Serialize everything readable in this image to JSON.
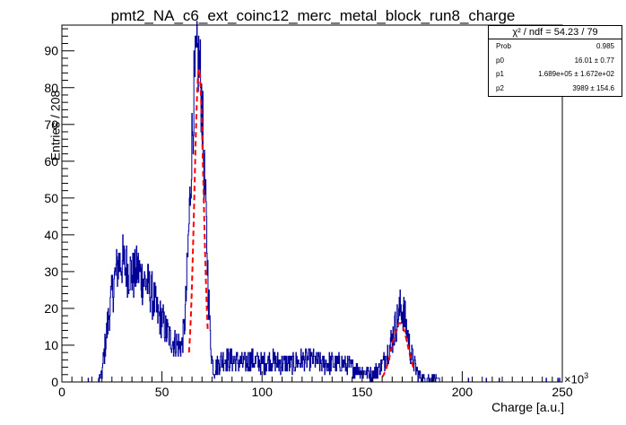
{
  "chart_data": {
    "type": "histogram",
    "title": "pmt2_NA_c6_ext_coinc12_merc_metal_block_run8_charge",
    "xlabel": "Charge [a.u.]",
    "ylabel": "Entries / 208",
    "x_multiplier": "×10",
    "x_multiplier_exp": "3",
    "xlim": [
      0,
      250
    ],
    "ylim": [
      0,
      97
    ],
    "x_ticks": [
      "0",
      "50",
      "100",
      "150",
      "200",
      "250"
    ],
    "y_ticks": [
      "0",
      "10",
      "20",
      "30",
      "40",
      "50",
      "60",
      "70",
      "80",
      "90"
    ],
    "series": [
      {
        "style": "histogram",
        "color": "#000099",
        "x": [
          0,
          5,
          10,
          15,
          18,
          20,
          22,
          24,
          26,
          28,
          30,
          32,
          34,
          36,
          38,
          40,
          42,
          44,
          46,
          48,
          50,
          52,
          54,
          56,
          58,
          60,
          61,
          62,
          63,
          64,
          65,
          66,
          67,
          68,
          69,
          70,
          71,
          72,
          73,
          74,
          75,
          76,
          78,
          80,
          85,
          90,
          95,
          100,
          105,
          110,
          115,
          120,
          125,
          130,
          135,
          140,
          145,
          150,
          155,
          157,
          159,
          160,
          162,
          164,
          166,
          168,
          169,
          170,
          171,
          172,
          174,
          176,
          178,
          180,
          185,
          190,
          200,
          210,
          220,
          230,
          240,
          250
        ],
        "y": [
          0,
          0,
          0,
          0,
          0,
          2,
          12,
          20,
          27,
          32,
          33,
          31,
          30,
          29,
          31,
          28,
          27,
          25,
          22,
          18,
          17,
          14,
          12,
          11,
          10,
          10,
          14,
          22,
          35,
          50,
          65,
          78,
          85,
          88,
          85,
          75,
          58,
          45,
          28,
          14,
          6,
          3,
          5,
          6,
          6,
          5,
          6,
          5,
          6,
          5,
          5,
          6,
          6,
          5,
          5,
          5,
          4,
          3,
          2,
          3,
          4,
          5,
          7,
          10,
          14,
          18,
          20,
          20,
          18,
          15,
          9,
          5,
          2,
          1,
          1,
          0,
          0,
          0,
          0,
          0,
          0,
          0
        ]
      }
    ],
    "fits": [
      {
        "color": "#ff0000",
        "center": 68.5,
        "sigma": 2.3,
        "amplitude": 85,
        "range": [
          63.5,
          73
        ]
      },
      {
        "color": "#ff0000",
        "center": 168.9,
        "sigma": 3.99,
        "amplitude": 16.0,
        "range": [
          160,
          176
        ]
      }
    ],
    "stats": {
      "header": "χ² / ndf = 54.23 / 79",
      "rows": [
        {
          "key": "Prob",
          "value": "0.985"
        },
        {
          "key": "p0",
          "value": "16.01 ± 0.77"
        },
        {
          "key": "p1",
          "value": "1.689e+05 ± 1.672e+02"
        },
        {
          "key": "p2",
          "value": "3989 ± 154.6"
        }
      ]
    }
  }
}
